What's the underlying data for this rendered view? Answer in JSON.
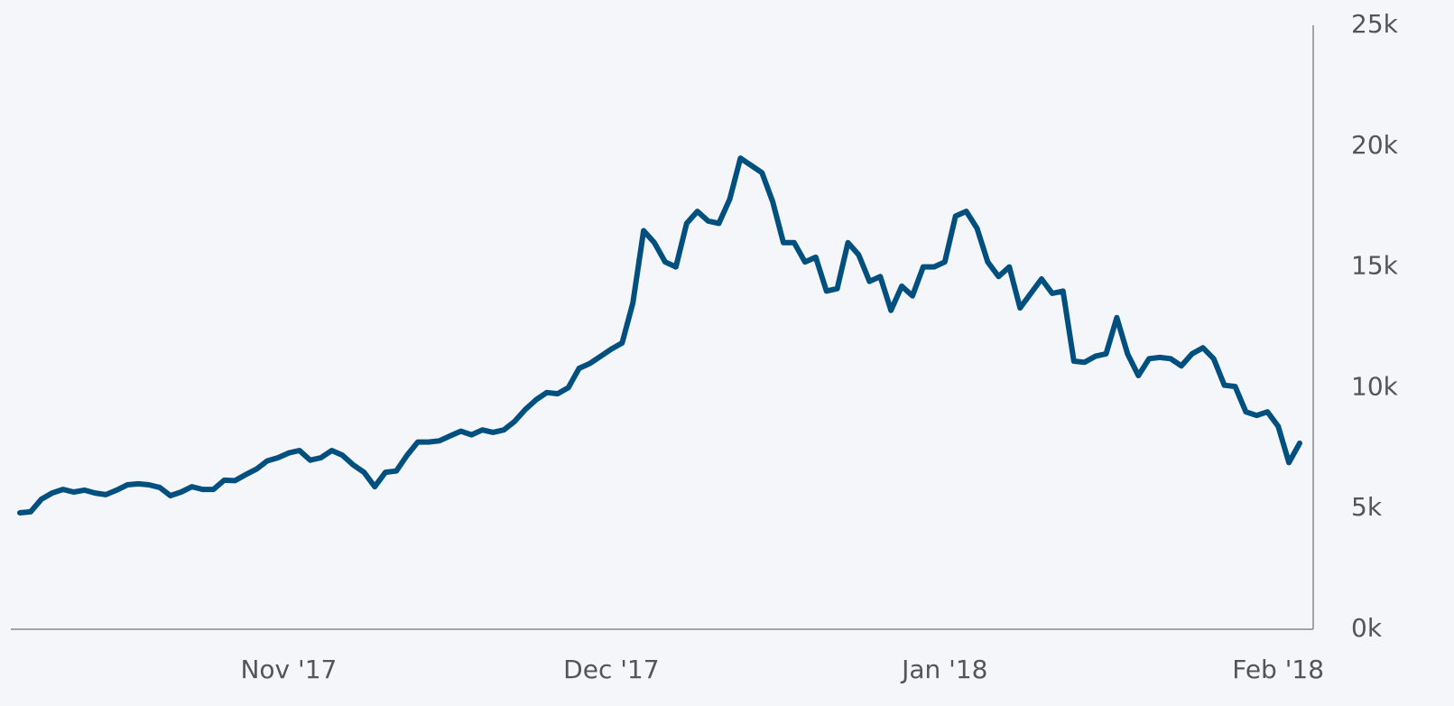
{
  "chart_data": {
    "type": "line",
    "color": "#00507f",
    "categories": [
      null,
      null,
      null,
      null,
      null,
      null,
      null,
      null,
      null,
      null,
      null,
      null,
      null,
      null,
      null,
      null,
      null,
      null,
      null,
      null,
      null,
      null,
      null,
      null,
      null,
      "Nov '17",
      null,
      null,
      null,
      null,
      null,
      null,
      null,
      null,
      null,
      null,
      null,
      null,
      null,
      null,
      null,
      null,
      null,
      null,
      null,
      null,
      null,
      null,
      null,
      null,
      null,
      null,
      null,
      null,
      null,
      "Dec '17",
      null,
      null,
      null,
      null,
      null,
      null,
      null,
      null,
      null,
      null,
      null,
      null,
      null,
      null,
      null,
      null,
      null,
      null,
      null,
      null,
      null,
      null,
      null,
      null,
      null,
      null,
      null,
      null,
      null,
      null,
      "Jan '18",
      null,
      null,
      null,
      null,
      null,
      null,
      null,
      null,
      null,
      null,
      null,
      null,
      null,
      null,
      null,
      null,
      null,
      null,
      null,
      null,
      null,
      null,
      null,
      null,
      null,
      null,
      null,
      null,
      null,
      null,
      "Feb '18",
      null,
      null
    ],
    "values": [
      4820,
      4860,
      5380,
      5640,
      5790,
      5680,
      5760,
      5640,
      5570,
      5760,
      5980,
      6020,
      5980,
      5870,
      5530,
      5680,
      5900,
      5790,
      5790,
      6170,
      6150,
      6400,
      6630,
      6970,
      7100,
      7300,
      7400,
      7000,
      7100,
      7400,
      7200,
      6800,
      6500,
      5900,
      6500,
      6550,
      7200,
      7750,
      7750,
      7800,
      8000,
      8200,
      8050,
      8250,
      8150,
      8250,
      8600,
      9100,
      9500,
      9800,
      9750,
      10000,
      10800,
      11000,
      11300,
      11600,
      11850,
      13500,
      16500,
      16000,
      15200,
      15000,
      16800,
      17300,
      16900,
      16800,
      17800,
      19500,
      19200,
      18900,
      17700,
      16000,
      16000,
      15200,
      15400,
      14000,
      14100,
      16000,
      15500,
      14400,
      14600,
      13200,
      14200,
      13800,
      15000,
      15000,
      15200,
      17100,
      17300,
      16600,
      15200,
      14600,
      15000,
      13300,
      13900,
      14500,
      13900,
      14000,
      11100,
      11050,
      11300,
      11400,
      12900,
      11400,
      10500,
      11200,
      11250,
      11200,
      10900,
      11400,
      11650,
      11200,
      10100,
      10050,
      9000,
      8850,
      9000,
      8400,
      6900,
      7700
    ],
    "ylim": [
      0,
      25000
    ],
    "yticks": [
      {
        "value": 0,
        "label": "0k"
      },
      {
        "value": 5000,
        "label": "5k"
      },
      {
        "value": 10000,
        "label": "10k"
      },
      {
        "value": 15000,
        "label": "15k"
      },
      {
        "value": 20000,
        "label": "20k"
      },
      {
        "value": 25000,
        "label": "25k"
      }
    ]
  }
}
